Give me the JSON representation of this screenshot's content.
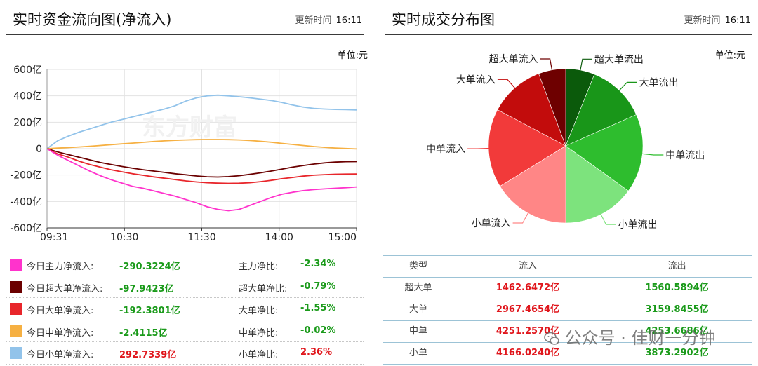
{
  "left_panel": {
    "title": "实时资金流向图(净流入)",
    "update_label": "更新时间",
    "update_time": "16:11",
    "unit": "单位:元"
  },
  "right_panel": {
    "title": "实时成交分布图",
    "update_label": "更新时间",
    "update_time": "16:11",
    "unit": "单位:元"
  },
  "colors": {
    "main": "#ff33cc",
    "super": "#6b0000",
    "large": "#e8262b",
    "medium": "#f6b042",
    "small": "#92c3ea",
    "positive": "#e0161c",
    "negative": "#1a9a1a"
  },
  "chart_data": [
    {
      "type": "line",
      "title": "实时资金流向图(净流入)",
      "x_ticks": [
        "09:31",
        "10:30",
        "11:30",
        "14:00",
        "15:00"
      ],
      "y_ticks": [
        "600亿",
        "400亿",
        "200亿",
        "0",
        "-200亿",
        "-400亿",
        "-600亿"
      ],
      "ylim": [
        -600,
        600
      ],
      "y_unit": "亿",
      "grid": true,
      "series": [
        {
          "name": "今日主力净流入",
          "color": "#ff33cc",
          "values": [
            0,
            -50,
            -90,
            -130,
            -170,
            -205,
            -235,
            -260,
            -285,
            -300,
            -320,
            -340,
            -360,
            -385,
            -410,
            -440,
            -460,
            -470,
            -460,
            -430,
            -400,
            -370,
            -345,
            -330,
            -318,
            -310,
            -305,
            -300,
            -296,
            -290
          ]
        },
        {
          "name": "今日超大单净流入",
          "color": "#6b0000",
          "values": [
            0,
            -25,
            -45,
            -65,
            -85,
            -105,
            -120,
            -135,
            -148,
            -160,
            -170,
            -180,
            -190,
            -198,
            -207,
            -213,
            -215,
            -212,
            -205,
            -195,
            -183,
            -170,
            -155,
            -140,
            -128,
            -117,
            -108,
            -102,
            -99,
            -98
          ]
        },
        {
          "name": "今日大单净流入",
          "color": "#e8262b",
          "values": [
            0,
            -40,
            -65,
            -95,
            -120,
            -140,
            -160,
            -175,
            -190,
            -202,
            -214,
            -224,
            -234,
            -244,
            -252,
            -258,
            -261,
            -263,
            -262,
            -258,
            -250,
            -240,
            -228,
            -218,
            -208,
            -201,
            -197,
            -194,
            -193,
            -192
          ]
        },
        {
          "name": "今日中单净流入",
          "color": "#f6b042",
          "values": [
            0,
            4,
            8,
            13,
            18,
            24,
            30,
            36,
            42,
            48,
            54,
            59,
            63,
            66,
            68,
            69,
            69,
            68,
            66,
            62,
            56,
            49,
            40,
            32,
            24,
            16,
            10,
            5,
            1,
            -2
          ]
        },
        {
          "name": "今日小单净流入",
          "color": "#92c3ea",
          "values": [
            0,
            60,
            95,
            125,
            150,
            175,
            200,
            220,
            240,
            260,
            280,
            300,
            325,
            360,
            385,
            400,
            405,
            400,
            393,
            385,
            375,
            365,
            350,
            330,
            315,
            305,
            300,
            297,
            295,
            293
          ]
        }
      ]
    },
    {
      "type": "pie",
      "title": "实时成交分布图",
      "unit": "亿",
      "slices": [
        {
          "label": "超大单流出",
          "value": 1560.5894,
          "color": "#0b5a0b"
        },
        {
          "label": "大单流出",
          "value": 3159.8455,
          "color": "#199619"
        },
        {
          "label": "中单流出",
          "value": 4253.6686,
          "color": "#2ebd2e"
        },
        {
          "label": "小单流出",
          "value": 3873.2902,
          "color": "#7de37d"
        },
        {
          "label": "小单流入",
          "value": 4166.024,
          "color": "#ff8686"
        },
        {
          "label": "中单流入",
          "value": 4251.257,
          "color": "#f23a3a"
        },
        {
          "label": "大单流入",
          "value": 2967.4654,
          "color": "#c20c0c"
        },
        {
          "label": "超大单流入",
          "value": 1462.6472,
          "color": "#6e0000"
        }
      ]
    }
  ],
  "legend_table": [
    {
      "name": "今日主力净流入:",
      "value": "-290.3224亿",
      "value_color": "green",
      "ratio_label": "主力净比:",
      "ratio": "-2.34%",
      "ratio_color": "green",
      "color": "#ff33cc"
    },
    {
      "name": "今日超大单净流入:",
      "value": "-97.9423亿",
      "value_color": "green",
      "ratio_label": "超大单净比:",
      "ratio": "-0.79%",
      "ratio_color": "green",
      "color": "#6b0000"
    },
    {
      "name": "今日大单净流入:",
      "value": "-192.3801亿",
      "value_color": "green",
      "ratio_label": "大单净比:",
      "ratio": "-1.55%",
      "ratio_color": "green",
      "color": "#e8262b"
    },
    {
      "name": "今日中单净流入:",
      "value": "-2.4115亿",
      "value_color": "green",
      "ratio_label": "中单净比:",
      "ratio": "-0.02%",
      "ratio_color": "green",
      "color": "#f6b042"
    },
    {
      "name": "今日小单净流入:",
      "value": "292.7339亿",
      "value_color": "red",
      "ratio_label": "小单净比:",
      "ratio": "2.36%",
      "ratio_color": "red",
      "color": "#92c3ea"
    }
  ],
  "trade_table": {
    "headers": [
      "类型",
      "流入",
      "流出"
    ],
    "rows": [
      [
        "超大单",
        "1462.6472亿",
        "1560.5894亿"
      ],
      [
        "大单",
        "2967.4654亿",
        "3159.8455亿"
      ],
      [
        "中单",
        "4251.2570亿",
        "4253.6686亿"
      ],
      [
        "小单",
        "4166.0240亿",
        "3873.2902亿"
      ]
    ]
  },
  "watermark": {
    "chart": "东方财富",
    "footer": "公众号 · 佳财一分钟"
  }
}
